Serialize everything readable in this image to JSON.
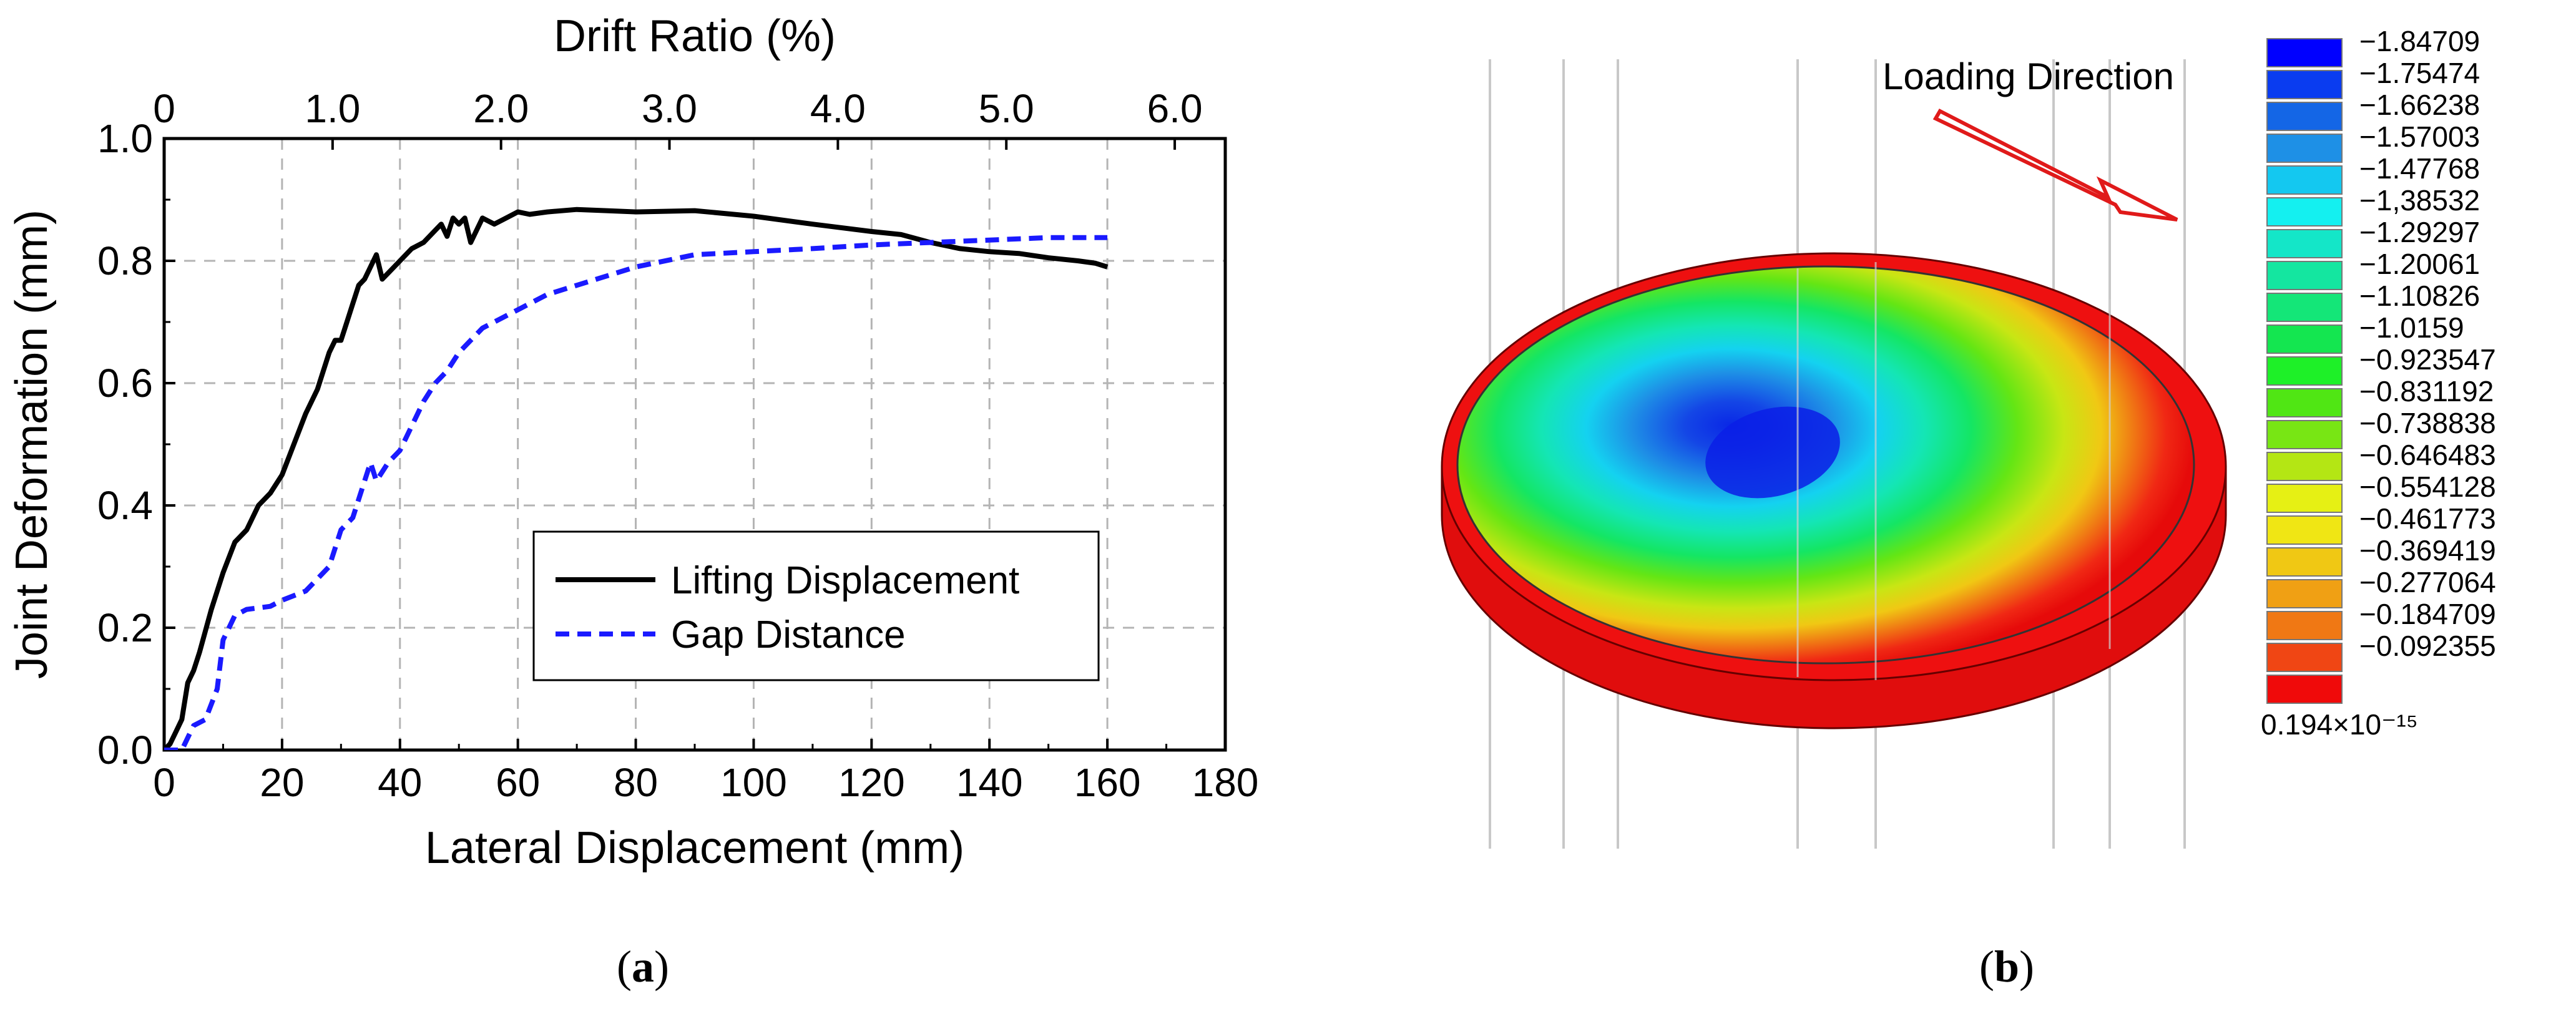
{
  "chart_data": [
    {
      "type": "line",
      "panel_label_prefix": "(",
      "panel_label": "a",
      "panel_label_suffix": ")",
      "xlabel": "Lateral Displacement (mm)",
      "ylabel": "Joint Deformation (mm)",
      "x2label": "Drift Ratio (%)",
      "xlim": [
        0,
        180
      ],
      "ylim": [
        0,
        1.0
      ],
      "x2lim": [
        0,
        6.3
      ],
      "x_ticks": [
        0,
        20,
        40,
        60,
        80,
        100,
        120,
        140,
        160,
        180
      ],
      "x_tick_labels": [
        "0",
        "20",
        "40",
        "60",
        "80",
        "100",
        "120",
        "140",
        "160",
        "180"
      ],
      "y_ticks": [
        0,
        0.2,
        0.4,
        0.6,
        0.8,
        1.0
      ],
      "y_tick_labels": [
        "0.0",
        "0.2",
        "0.4",
        "0.6",
        "0.8",
        "1.0"
      ],
      "x2_ticks": [
        0,
        1,
        2,
        3,
        4,
        5,
        6
      ],
      "x2_tick_labels": [
        "0",
        "1.0",
        "2.0",
        "3.0",
        "4.0",
        "5.0",
        "6.0"
      ],
      "grid": true,
      "legend_position": "lower-right",
      "series": [
        {
          "name": "Lifting Displacement",
          "color": "#000000",
          "style": "solid",
          "x": [
            0,
            1,
            2,
            3,
            4,
            5,
            6,
            8,
            10,
            12,
            14,
            16,
            18,
            20,
            22,
            24,
            26,
            28,
            29,
            30,
            31,
            32,
            33,
            34,
            35,
            36,
            37,
            38,
            40,
            42,
            44,
            46,
            47,
            48,
            49,
            50,
            51,
            52,
            54,
            56,
            58,
            60,
            62,
            65,
            70,
            75,
            80,
            90,
            100,
            110,
            120,
            125,
            130,
            135,
            140,
            145,
            150,
            155,
            158,
            160
          ],
          "y": [
            0,
            0.01,
            0.03,
            0.05,
            0.11,
            0.13,
            0.16,
            0.23,
            0.29,
            0.34,
            0.36,
            0.4,
            0.42,
            0.45,
            0.5,
            0.55,
            0.59,
            0.65,
            0.67,
            0.67,
            0.7,
            0.73,
            0.76,
            0.77,
            0.79,
            0.81,
            0.77,
            0.78,
            0.8,
            0.82,
            0.83,
            0.85,
            0.86,
            0.84,
            0.87,
            0.86,
            0.87,
            0.83,
            0.87,
            0.86,
            0.87,
            0.88,
            0.876,
            0.88,
            0.884,
            0.882,
            0.88,
            0.882,
            0.873,
            0.86,
            0.848,
            0.843,
            0.83,
            0.82,
            0.815,
            0.812,
            0.805,
            0.8,
            0.796,
            0.79
          ]
        },
        {
          "name": "Gap Distance",
          "color": "#1a1aff",
          "style": "dashed",
          "x": [
            0,
            3,
            5,
            7,
            9,
            10,
            11,
            12,
            14,
            18,
            20,
            24,
            28,
            30,
            32,
            34,
            35,
            36,
            38,
            40,
            42,
            44,
            46,
            48,
            50,
            52,
            54,
            56,
            60,
            65,
            70,
            80,
            90,
            100,
            110,
            120,
            130,
            140,
            150,
            160
          ],
          "y": [
            0,
            0.0,
            0.04,
            0.05,
            0.1,
            0.18,
            0.2,
            0.22,
            0.23,
            0.235,
            0.245,
            0.26,
            0.3,
            0.36,
            0.38,
            0.44,
            0.47,
            0.44,
            0.47,
            0.49,
            0.53,
            0.57,
            0.6,
            0.62,
            0.65,
            0.67,
            0.69,
            0.7,
            0.72,
            0.745,
            0.76,
            0.79,
            0.81,
            0.815,
            0.82,
            0.826,
            0.83,
            0.834,
            0.838,
            0.838
          ]
        }
      ]
    },
    {
      "type": "heatmap",
      "panel_label_prefix": "(",
      "panel_label": "b",
      "panel_label_suffix": ")",
      "annotation": "Loading Direction",
      "colorbar": {
        "labels": [
          "−1.84709",
          "−1.75474",
          "−1.66238",
          "−1.57003",
          "−1.47768",
          "−1,38532",
          "−1.29297",
          "−1.20061",
          "−1.10826",
          "−1.0159",
          "−0.923547",
          "−0.831192",
          "−0.738838",
          "−0.646483",
          "−0.554128",
          "−0.461773",
          "−0.369419",
          "−0.277064",
          "−0.184709",
          "−0.092355",
          "0.194×10⁻¹⁵"
        ],
        "colors": [
          "#0000ff",
          "#0a3cf0",
          "#1466e6",
          "#1e90e6",
          "#14c8f0",
          "#14f0f0",
          "#14e6c8",
          "#14e6a0",
          "#14e678",
          "#14e650",
          "#1ef028",
          "#50e614",
          "#78e614",
          "#b4e614",
          "#e6f014",
          "#f0e614",
          "#f0c814",
          "#f0a014",
          "#f07814",
          "#f04614",
          "#f00a0a"
        ]
      }
    }
  ]
}
